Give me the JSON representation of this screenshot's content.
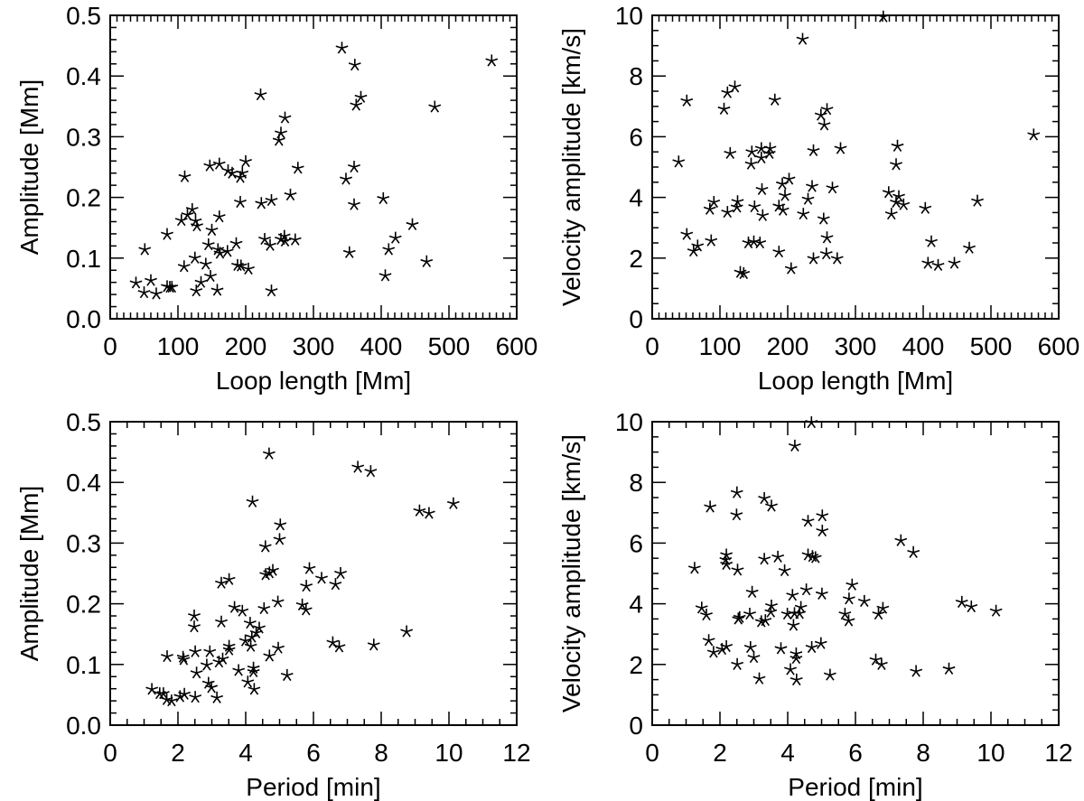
{
  "chart_data": [
    {
      "type": "scatter",
      "xlabel": "Loop length [Mm]",
      "ylabel": "Amplitude [Mm]",
      "xlim": [
        0,
        600
      ],
      "ylim": [
        0,
        0.5
      ],
      "xticks": [
        "0",
        "100",
        "200",
        "300",
        "400",
        "500",
        "600"
      ],
      "yticks": [
        "0.0",
        "0.1",
        "0.2",
        "0.3",
        "0.4",
        "0.5"
      ],
      "marker": "asterisk",
      "color": "#000000",
      "grid": false,
      "points": [
        [
          342,
          0.446
        ],
        [
          361,
          0.418
        ],
        [
          563,
          0.425
        ],
        [
          222,
          0.369
        ],
        [
          370,
          0.365
        ],
        [
          363,
          0.352
        ],
        [
          479,
          0.349
        ],
        [
          258,
          0.331
        ],
        [
          252,
          0.306
        ],
        [
          249,
          0.294
        ],
        [
          200,
          0.259
        ],
        [
          147,
          0.252
        ],
        [
          161,
          0.255
        ],
        [
          174,
          0.244
        ],
        [
          180,
          0.24
        ],
        [
          195,
          0.24
        ],
        [
          192,
          0.233
        ],
        [
          277,
          0.248
        ],
        [
          360,
          0.25
        ],
        [
          110,
          0.234
        ],
        [
          348,
          0.23
        ],
        [
          266,
          0.204
        ],
        [
          403,
          0.198
        ],
        [
          192,
          0.192
        ],
        [
          223,
          0.19
        ],
        [
          238,
          0.195
        ],
        [
          360,
          0.188
        ],
        [
          121,
          0.18
        ],
        [
          114,
          0.171
        ],
        [
          105,
          0.162
        ],
        [
          126,
          0.161
        ],
        [
          128,
          0.153
        ],
        [
          161,
          0.168
        ],
        [
          150,
          0.146
        ],
        [
          84,
          0.139
        ],
        [
          446,
          0.155
        ],
        [
          421,
          0.133
        ],
        [
          228,
          0.131
        ],
        [
          236,
          0.121
        ],
        [
          252,
          0.131
        ],
        [
          257,
          0.136
        ],
        [
          258,
          0.128
        ],
        [
          273,
          0.13
        ],
        [
          186,
          0.124
        ],
        [
          145,
          0.122
        ],
        [
          159,
          0.114
        ],
        [
          162,
          0.108
        ],
        [
          173,
          0.111
        ],
        [
          51,
          0.114
        ],
        [
          411,
          0.114
        ],
        [
          353,
          0.109
        ],
        [
          467,
          0.094
        ],
        [
          125,
          0.1
        ],
        [
          109,
          0.086
        ],
        [
          141,
          0.09
        ],
        [
          188,
          0.088
        ],
        [
          193,
          0.087
        ],
        [
          204,
          0.082
        ],
        [
          406,
          0.071
        ],
        [
          38,
          0.059
        ],
        [
          60,
          0.063
        ],
        [
          50,
          0.043
        ],
        [
          68,
          0.041
        ],
        [
          84,
          0.053
        ],
        [
          88,
          0.052
        ],
        [
          91,
          0.052
        ],
        [
          134,
          0.06
        ],
        [
          148,
          0.07
        ],
        [
          127,
          0.046
        ],
        [
          158,
          0.047
        ],
        [
          238,
          0.046
        ]
      ]
    },
    {
      "type": "scatter",
      "xlabel": "Loop length [Mm]",
      "ylabel": "Velocity amplitude [km/s]",
      "xlim": [
        0,
        600
      ],
      "ylim": [
        0,
        10
      ],
      "xticks": [
        "0",
        "100",
        "200",
        "300",
        "400",
        "500",
        "600"
      ],
      "yticks": [
        "0",
        "2",
        "4",
        "6",
        "8",
        "10"
      ],
      "marker": "asterisk",
      "color": "#000000",
      "grid": false,
      "points": [
        [
          341,
          9.95
        ],
        [
          222,
          9.21
        ],
        [
          122,
          7.64
        ],
        [
          111,
          7.45
        ],
        [
          51,
          7.18
        ],
        [
          181,
          7.21
        ],
        [
          106,
          6.91
        ],
        [
          258,
          6.9
        ],
        [
          249,
          6.71
        ],
        [
          254,
          6.39
        ],
        [
          563,
          6.06
        ],
        [
          362,
          5.69
        ],
        [
          115,
          5.45
        ],
        [
          147,
          5.5
        ],
        [
          161,
          5.61
        ],
        [
          174,
          5.61
        ],
        [
          173,
          5.45
        ],
        [
          161,
          5.3
        ],
        [
          238,
          5.54
        ],
        [
          278,
          5.61
        ],
        [
          360,
          5.08
        ],
        [
          39,
          5.17
        ],
        [
          146,
          5.1
        ],
        [
          202,
          4.6
        ],
        [
          192,
          4.44
        ],
        [
          196,
          4.06
        ],
        [
          162,
          4.26
        ],
        [
          236,
          4.36
        ],
        [
          266,
          4.31
        ],
        [
          230,
          3.94
        ],
        [
          349,
          4.16
        ],
        [
          364,
          4.03
        ],
        [
          360,
          3.84
        ],
        [
          371,
          3.76
        ],
        [
          480,
          3.88
        ],
        [
          91,
          3.84
        ],
        [
          85,
          3.61
        ],
        [
          126,
          3.86
        ],
        [
          125,
          3.68
        ],
        [
          111,
          3.51
        ],
        [
          151,
          3.69
        ],
        [
          163,
          3.4
        ],
        [
          187,
          3.71
        ],
        [
          193,
          3.58
        ],
        [
          223,
          3.45
        ],
        [
          253,
          3.29
        ],
        [
          353,
          3.45
        ],
        [
          403,
          3.64
        ],
        [
          51,
          2.78
        ],
        [
          67,
          2.4
        ],
        [
          61,
          2.23
        ],
        [
          87,
          2.57
        ],
        [
          142,
          2.5
        ],
        [
          150,
          2.54
        ],
        [
          159,
          2.5
        ],
        [
          258,
          2.67
        ],
        [
          412,
          2.54
        ],
        [
          468,
          2.33
        ],
        [
          187,
          2.2
        ],
        [
          238,
          1.98
        ],
        [
          257,
          2.14
        ],
        [
          273,
          1.98
        ],
        [
          407,
          1.83
        ],
        [
          422,
          1.76
        ],
        [
          446,
          1.83
        ],
        [
          205,
          1.65
        ],
        [
          130,
          1.53
        ],
        [
          135,
          1.49
        ]
      ]
    },
    {
      "type": "scatter",
      "xlabel": "Period [min]",
      "ylabel": "Amplitude [Mm]",
      "xlim": [
        0,
        12
      ],
      "ylim": [
        0,
        0.5
      ],
      "xticks": [
        "0",
        "2",
        "4",
        "6",
        "8",
        "10",
        "12"
      ],
      "yticks": [
        "0.0",
        "0.1",
        "0.2",
        "0.3",
        "0.4",
        "0.5"
      ],
      "marker": "asterisk",
      "color": "#000000",
      "grid": false,
      "points": [
        [
          4.69,
          0.447
        ],
        [
          7.31,
          0.425
        ],
        [
          7.69,
          0.418
        ],
        [
          4.2,
          0.368
        ],
        [
          10.13,
          0.365
        ],
        [
          9.13,
          0.353
        ],
        [
          9.41,
          0.349
        ],
        [
          5.02,
          0.33
        ],
        [
          5.0,
          0.306
        ],
        [
          4.58,
          0.294
        ],
        [
          5.88,
          0.258
        ],
        [
          4.8,
          0.255
        ],
        [
          4.59,
          0.248
        ],
        [
          4.7,
          0.251
        ],
        [
          6.8,
          0.25
        ],
        [
          6.24,
          0.242
        ],
        [
          6.65,
          0.232
        ],
        [
          5.79,
          0.229
        ],
        [
          3.51,
          0.24
        ],
        [
          3.28,
          0.234
        ],
        [
          4.95,
          0.203
        ],
        [
          5.67,
          0.198
        ],
        [
          5.78,
          0.19
        ],
        [
          4.54,
          0.192
        ],
        [
          3.67,
          0.194
        ],
        [
          3.9,
          0.188
        ],
        [
          2.48,
          0.18
        ],
        [
          2.48,
          0.162
        ],
        [
          3.28,
          0.17
        ],
        [
          4.13,
          0.168
        ],
        [
          4.4,
          0.16
        ],
        [
          4.31,
          0.152
        ],
        [
          4.18,
          0.145
        ],
        [
          3.99,
          0.139
        ],
        [
          4.15,
          0.13
        ],
        [
          3.51,
          0.13
        ],
        [
          3.51,
          0.124
        ],
        [
          8.75,
          0.154
        ],
        [
          6.57,
          0.136
        ],
        [
          6.76,
          0.129
        ],
        [
          7.78,
          0.132
        ],
        [
          4.96,
          0.127
        ],
        [
          4.7,
          0.114
        ],
        [
          1.68,
          0.113
        ],
        [
          2.15,
          0.112
        ],
        [
          2.17,
          0.108
        ],
        [
          2.51,
          0.121
        ],
        [
          2.94,
          0.121
        ],
        [
          2.85,
          0.099
        ],
        [
          3.21,
          0.104
        ],
        [
          3.32,
          0.109
        ],
        [
          2.55,
          0.086
        ],
        [
          3.79,
          0.09
        ],
        [
          4.23,
          0.094
        ],
        [
          4.23,
          0.088
        ],
        [
          5.22,
          0.082
        ],
        [
          2.9,
          0.069
        ],
        [
          2.99,
          0.062
        ],
        [
          4.06,
          0.071
        ],
        [
          4.25,
          0.059
        ],
        [
          1.23,
          0.059
        ],
        [
          1.46,
          0.052
        ],
        [
          1.57,
          0.052
        ],
        [
          1.67,
          0.042
        ],
        [
          1.81,
          0.04
        ],
        [
          2.06,
          0.047
        ],
        [
          2.19,
          0.051
        ],
        [
          2.51,
          0.046
        ],
        [
          3.15,
          0.045
        ]
      ]
    },
    {
      "type": "scatter",
      "xlabel": "Period [min]",
      "ylabel": "Velocity amplitude [km/s]",
      "xlim": [
        0,
        12
      ],
      "ylim": [
        0,
        10
      ],
      "xticks": [
        "0",
        "2",
        "4",
        "6",
        "8",
        "10",
        "12"
      ],
      "yticks": [
        "0",
        "2",
        "4",
        "6",
        "8",
        "10"
      ],
      "marker": "asterisk",
      "color": "#000000",
      "grid": false,
      "points": [
        [
          4.7,
          9.97
        ],
        [
          4.21,
          9.2
        ],
        [
          2.5,
          7.66
        ],
        [
          3.31,
          7.47
        ],
        [
          1.71,
          7.19
        ],
        [
          3.52,
          7.22
        ],
        [
          2.49,
          6.93
        ],
        [
          5.02,
          6.9
        ],
        [
          4.6,
          6.72
        ],
        [
          5.02,
          6.4
        ],
        [
          7.34,
          6.08
        ],
        [
          7.71,
          5.69
        ],
        [
          2.19,
          5.61
        ],
        [
          2.17,
          5.45
        ],
        [
          2.19,
          5.3
        ],
        [
          3.31,
          5.47
        ],
        [
          3.71,
          5.54
        ],
        [
          4.6,
          5.61
        ],
        [
          4.73,
          5.56
        ],
        [
          4.82,
          5.52
        ],
        [
          2.52,
          5.11
        ],
        [
          3.91,
          5.09
        ],
        [
          1.25,
          5.17
        ],
        [
          5.9,
          4.62
        ],
        [
          4.55,
          4.46
        ],
        [
          5.01,
          4.32
        ],
        [
          2.95,
          4.38
        ],
        [
          4.14,
          4.28
        ],
        [
          5.81,
          4.16
        ],
        [
          6.26,
          4.08
        ],
        [
          3.52,
          3.93
        ],
        [
          3.5,
          3.73
        ],
        [
          4.39,
          3.88
        ],
        [
          4.35,
          3.68
        ],
        [
          4.2,
          3.68
        ],
        [
          3.99,
          3.66
        ],
        [
          2.88,
          3.66
        ],
        [
          2.58,
          3.55
        ],
        [
          2.54,
          3.5
        ],
        [
          3.22,
          3.41
        ],
        [
          3.34,
          3.45
        ],
        [
          4.17,
          3.29
        ],
        [
          1.46,
          3.86
        ],
        [
          1.6,
          3.63
        ],
        [
          5.69,
          3.66
        ],
        [
          5.8,
          3.44
        ],
        [
          6.81,
          3.85
        ],
        [
          6.68,
          3.66
        ],
        [
          9.14,
          4.05
        ],
        [
          9.42,
          3.9
        ],
        [
          10.15,
          3.76
        ],
        [
          1.67,
          2.79
        ],
        [
          1.81,
          2.4
        ],
        [
          2.06,
          2.5
        ],
        [
          2.19,
          2.59
        ],
        [
          2.9,
          2.56
        ],
        [
          3.0,
          2.23
        ],
        [
          2.51,
          2.0
        ],
        [
          3.8,
          2.52
        ],
        [
          4.71,
          2.56
        ],
        [
          4.98,
          2.69
        ],
        [
          4.25,
          2.35
        ],
        [
          4.25,
          2.2
        ],
        [
          4.08,
          1.83
        ],
        [
          4.26,
          1.49
        ],
        [
          3.16,
          1.53
        ],
        [
          5.25,
          1.65
        ],
        [
          6.6,
          2.15
        ],
        [
          6.77,
          2.0
        ],
        [
          7.79,
          1.77
        ],
        [
          8.76,
          1.85
        ]
      ]
    }
  ]
}
